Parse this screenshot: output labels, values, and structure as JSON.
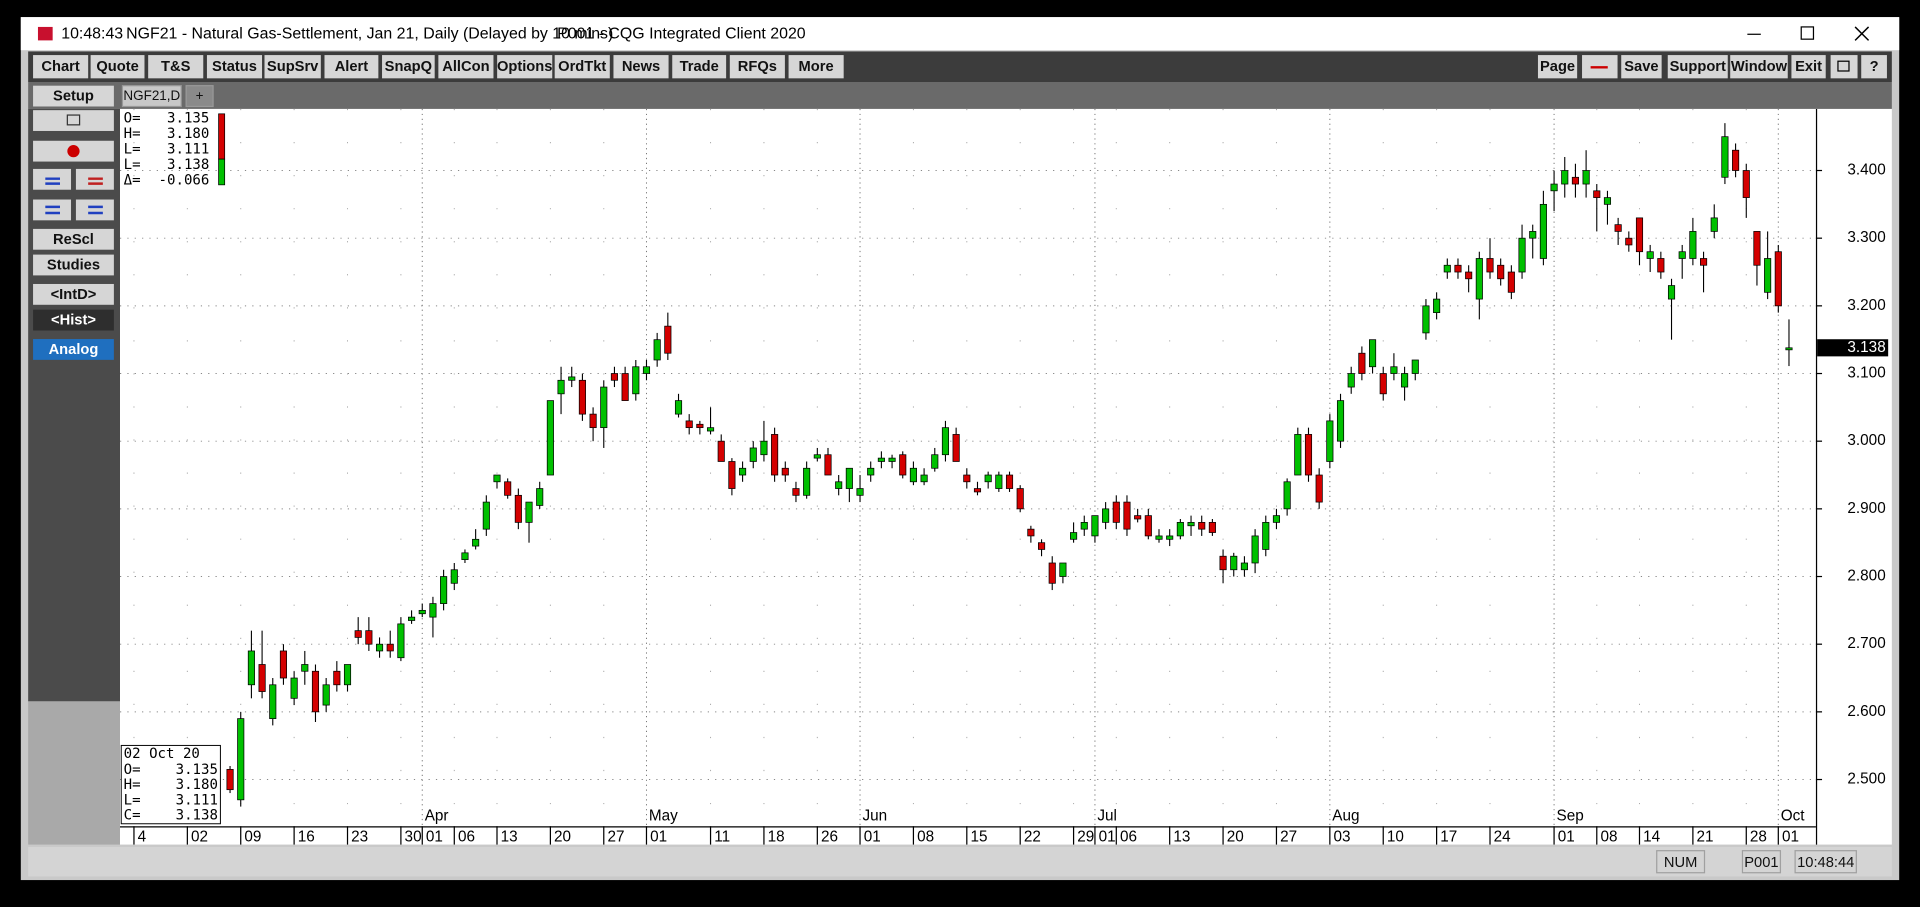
{
  "window": {
    "title_time": "10:48:43",
    "title_symbol": "NGF21 - Natural Gas-Settlement, Jan 21, Daily (Delayed by 10 mins)",
    "title_app": "P001 - CQG Integrated Client 2020",
    "toolbar_left": [
      "Chart",
      "Quote",
      "T&S",
      "Status",
      "SupSrv",
      "Alert",
      "SnapQ",
      "AllCon",
      "Options",
      "OrdTkt",
      "News",
      "Trade",
      "RFQs",
      "More"
    ],
    "toolbar_right": [
      "Page",
      "Save",
      "Support",
      "Window",
      "Exit"
    ],
    "side_buttons": [
      "Setup",
      "ReScl",
      "Studies",
      "<IntD>",
      "<Hist>",
      "Analog"
    ],
    "tabs": [
      "NGF21,D",
      "+"
    ],
    "status": [
      "NUM",
      "P001",
      "10:48:44"
    ]
  },
  "legend_top": [
    {
      "label": "O=",
      "value": "3.135"
    },
    {
      "label": "H=",
      "value": "3.180"
    },
    {
      "label": "L=",
      "value": "3.111"
    },
    {
      "label": "L=",
      "value": "3.138"
    },
    {
      "label": "Δ=",
      "value": "-0.066"
    }
  ],
  "legend_box": {
    "date": "02 Oct 20",
    "rows": [
      {
        "label": "O=",
        "value": "3.135"
      },
      {
        "label": "H=",
        "value": "3.180"
      },
      {
        "label": "L=",
        "value": "3.111"
      },
      {
        "label": "C=",
        "value": "3.138"
      }
    ]
  },
  "last_price_label": "3.138",
  "chart_data": {
    "type": "candlestick",
    "up_color": "#00c000",
    "down_color": "#d40000",
    "ylim": [
      2.431,
      3.491
    ],
    "yticks": [
      {
        "value": 2.5,
        "label": "2.500"
      },
      {
        "value": 2.6,
        "label": "2.600"
      },
      {
        "value": 2.7,
        "label": "2.700"
      },
      {
        "value": 2.8,
        "label": "2.800"
      },
      {
        "value": 2.9,
        "label": "2.900"
      },
      {
        "value": 3.0,
        "label": "3.000"
      },
      {
        "value": 3.1,
        "label": "3.100"
      },
      {
        "value": 3.2,
        "label": "3.200"
      },
      {
        "value": 3.3,
        "label": "3.300"
      },
      {
        "value": 3.4,
        "label": "3.400"
      }
    ],
    "grid": true,
    "categories": [
      "4",
      null,
      null,
      null,
      null,
      "02",
      null,
      null,
      null,
      null,
      "09",
      null,
      null,
      null,
      null,
      "16",
      null,
      null,
      null,
      null,
      "23",
      null,
      null,
      null,
      null,
      "30",
      null,
      "01",
      null,
      null,
      "06",
      null,
      null,
      null,
      "13",
      null,
      null,
      null,
      null,
      "20",
      null,
      null,
      null,
      null,
      "27",
      null,
      null,
      null,
      "01",
      null,
      null,
      null,
      null,
      null,
      "11",
      null,
      null,
      null,
      null,
      "18",
      null,
      null,
      null,
      null,
      "26",
      null,
      null,
      null,
      "01",
      null,
      null,
      null,
      null,
      "08",
      null,
      null,
      null,
      null,
      "15",
      null,
      null,
      null,
      null,
      "22",
      null,
      null,
      null,
      null,
      "29",
      null,
      "01",
      null,
      "06",
      null,
      null,
      null,
      null,
      "13",
      null,
      null,
      null,
      null,
      "20",
      null,
      null,
      null,
      null,
      "27",
      null,
      null,
      null,
      null,
      "03",
      null,
      null,
      null,
      null,
      "10",
      null,
      null,
      null,
      null,
      "17",
      null,
      null,
      null,
      null,
      "24",
      null,
      null,
      null,
      null,
      null,
      "01",
      null,
      null,
      null,
      "08",
      null,
      null,
      null,
      "14",
      null,
      null,
      null,
      null,
      "21",
      null,
      null,
      null,
      null,
      "28",
      null,
      null,
      "01",
      null
    ],
    "months": [
      null,
      null,
      null,
      null,
      null,
      null,
      null,
      null,
      null,
      null,
      null,
      null,
      null,
      null,
      null,
      null,
      null,
      null,
      null,
      null,
      null,
      null,
      null,
      null,
      null,
      null,
      null,
      "Apr",
      null,
      null,
      null,
      null,
      null,
      null,
      null,
      null,
      null,
      null,
      null,
      null,
      null,
      null,
      null,
      null,
      null,
      null,
      null,
      null,
      "May",
      null,
      null,
      null,
      null,
      null,
      null,
      null,
      null,
      null,
      null,
      null,
      null,
      null,
      null,
      null,
      null,
      null,
      null,
      null,
      "Jun",
      null,
      null,
      null,
      null,
      null,
      null,
      null,
      null,
      null,
      null,
      null,
      null,
      null,
      null,
      null,
      null,
      null,
      null,
      null,
      null,
      null,
      "Jul",
      null,
      null,
      null,
      null,
      null,
      null,
      null,
      null,
      null,
      null,
      null,
      null,
      null,
      null,
      null,
      null,
      null,
      null,
      null,
      null,
      null,
      "Aug",
      null,
      null,
      null,
      null,
      null,
      null,
      null,
      null,
      null,
      null,
      null,
      null,
      null,
      null,
      null,
      null,
      null,
      null,
      null,
      null,
      "Sep",
      null,
      null,
      null,
      null,
      null,
      null,
      null,
      null,
      null,
      null,
      null,
      null,
      null,
      null,
      null,
      null,
      null,
      null,
      null,
      null,
      "Oct",
      null
    ],
    "open": [
      null,
      null,
      null,
      null,
      null,
      null,
      null,
      null,
      null,
      2.515,
      2.47,
      2.64,
      2.67,
      2.59,
      2.69,
      2.62,
      2.66,
      2.66,
      2.61,
      2.66,
      2.64,
      2.72,
      2.72,
      2.69,
      2.7,
      2.68,
      2.735,
      2.745,
      2.74,
      2.76,
      2.79,
      2.825,
      2.845,
      2.87,
      2.94,
      2.94,
      2.92,
      2.88,
      2.905,
      2.95,
      3.07,
      3.09,
      3.09,
      3.04,
      3.02,
      3.1,
      3.1,
      3.07,
      3.1,
      3.12,
      3.17,
      3.04,
      3.03,
      3.025,
      3.015,
      3.0,
      2.97,
      2.95,
      2.97,
      2.98,
      3.01,
      2.96,
      2.93,
      2.92,
      2.975,
      2.98,
      2.93,
      2.93,
      2.92,
      2.95,
      2.97,
      2.97,
      2.98,
      2.94,
      2.94,
      2.96,
      2.98,
      3.01,
      2.95,
      2.93,
      2.94,
      2.93,
      2.95,
      2.93,
      2.87,
      2.85,
      2.82,
      2.8,
      2.855,
      2.87,
      2.86,
      2.88,
      2.91,
      2.91,
      2.89,
      2.89,
      2.855,
      2.855,
      2.86,
      2.875,
      2.88,
      2.88,
      2.83,
      2.81,
      2.81,
      2.82,
      2.84,
      2.88,
      2.9,
      2.95,
      3.01,
      2.95,
      2.97,
      3.0,
      3.08,
      3.13,
      3.11,
      3.1,
      3.1,
      3.08,
      3.1,
      3.16,
      3.19,
      3.25,
      3.26,
      3.25,
      3.21,
      3.27,
      3.26,
      3.25,
      3.25,
      3.3,
      3.27,
      3.37,
      3.38,
      3.39,
      3.38,
      3.37,
      3.35,
      3.32,
      3.3,
      3.33,
      3.27,
      3.27,
      3.21,
      3.27,
      3.27,
      3.27,
      3.31,
      3.39,
      3.43,
      3.4,
      3.31,
      3.22,
      3.28,
      3.135
    ],
    "high": [
      null,
      null,
      null,
      null,
      null,
      null,
      null,
      null,
      null,
      2.52,
      2.6,
      2.72,
      2.72,
      2.65,
      2.7,
      2.66,
      2.69,
      2.67,
      2.65,
      2.675,
      2.67,
      2.74,
      2.74,
      2.71,
      2.72,
      2.74,
      2.75,
      2.76,
      2.77,
      2.81,
      2.82,
      2.84,
      2.87,
      2.92,
      2.95,
      2.945,
      2.93,
      2.91,
      2.94,
      3.06,
      3.11,
      3.11,
      3.1,
      3.05,
      3.09,
      3.11,
      3.11,
      3.12,
      3.12,
      3.16,
      3.19,
      3.07,
      3.04,
      3.03,
      3.05,
      3.01,
      2.975,
      2.97,
      3.0,
      3.03,
      3.02,
      2.97,
      2.94,
      2.97,
      2.99,
      2.99,
      2.95,
      2.96,
      2.95,
      2.97,
      2.985,
      2.98,
      2.985,
      2.97,
      2.96,
      2.99,
      3.03,
      3.02,
      2.96,
      2.94,
      2.955,
      2.955,
      2.955,
      2.935,
      2.875,
      2.855,
      2.83,
      2.82,
      2.88,
      2.89,
      2.89,
      2.91,
      2.92,
      2.92,
      2.9,
      2.9,
      2.87,
      2.87,
      2.885,
      2.89,
      2.89,
      2.885,
      2.84,
      2.835,
      2.83,
      2.87,
      2.89,
      2.9,
      2.945,
      3.02,
      3.02,
      2.96,
      3.04,
      3.07,
      3.11,
      3.14,
      3.15,
      3.11,
      3.13,
      3.11,
      3.12,
      3.21,
      3.22,
      3.27,
      3.27,
      3.26,
      3.28,
      3.3,
      3.27,
      3.26,
      3.32,
      3.32,
      3.37,
      3.4,
      3.42,
      3.41,
      3.43,
      3.38,
      3.37,
      3.33,
      3.31,
      3.33,
      3.29,
      3.28,
      3.24,
      3.29,
      3.33,
      3.28,
      3.35,
      3.47,
      3.44,
      3.41,
      3.31,
      3.31,
      3.29,
      3.18
    ],
    "low": [
      null,
      null,
      null,
      null,
      null,
      null,
      null,
      null,
      null,
      2.48,
      2.46,
      2.62,
      2.62,
      2.58,
      2.64,
      2.61,
      2.64,
      2.585,
      2.6,
      2.63,
      2.63,
      2.7,
      2.69,
      2.68,
      2.68,
      2.675,
      2.73,
      2.74,
      2.71,
      2.75,
      2.78,
      2.82,
      2.84,
      2.86,
      2.93,
      2.915,
      2.87,
      2.85,
      2.9,
      2.95,
      3.04,
      3.08,
      3.03,
      3.0,
      2.99,
      3.08,
      3.06,
      3.06,
      3.09,
      3.11,
      3.12,
      3.035,
      3.01,
      3.01,
      3.01,
      2.97,
      2.92,
      2.94,
      2.96,
      2.97,
      2.94,
      2.94,
      2.91,
      2.915,
      2.97,
      2.95,
      2.92,
      2.91,
      2.91,
      2.94,
      2.96,
      2.96,
      2.945,
      2.935,
      2.935,
      2.955,
      2.97,
      2.97,
      2.93,
      2.92,
      2.93,
      2.925,
      2.925,
      2.895,
      2.85,
      2.83,
      2.78,
      2.79,
      2.85,
      2.86,
      2.85,
      2.87,
      2.87,
      2.86,
      2.88,
      2.855,
      2.85,
      2.845,
      2.855,
      2.86,
      2.86,
      2.86,
      2.79,
      2.8,
      2.8,
      2.805,
      2.83,
      2.87,
      2.89,
      2.95,
      2.94,
      2.9,
      2.96,
      2.99,
      3.07,
      3.09,
      3.1,
      3.06,
      3.09,
      3.06,
      3.09,
      3.15,
      3.18,
      3.24,
      3.24,
      3.22,
      3.18,
      3.24,
      3.23,
      3.21,
      3.24,
      3.27,
      3.26,
      3.34,
      3.36,
      3.36,
      3.36,
      3.31,
      3.32,
      3.29,
      3.28,
      3.26,
      3.25,
      3.24,
      3.15,
      3.24,
      3.26,
      3.22,
      3.3,
      3.38,
      3.39,
      3.33,
      3.23,
      3.21,
      3.19,
      3.111
    ],
    "close": [
      null,
      null,
      null,
      null,
      null,
      null,
      null,
      null,
      null,
      2.485,
      2.59,
      2.69,
      2.63,
      2.64,
      2.65,
      2.65,
      2.67,
      2.6,
      2.64,
      2.64,
      2.67,
      2.71,
      2.7,
      2.7,
      2.69,
      2.73,
      2.74,
      2.75,
      2.76,
      2.8,
      2.81,
      2.835,
      2.855,
      2.91,
      2.95,
      2.92,
      2.88,
      2.91,
      2.93,
      3.06,
      3.09,
      3.095,
      3.04,
      3.02,
      3.08,
      3.09,
      3.06,
      3.11,
      3.11,
      3.15,
      3.13,
      3.06,
      3.02,
      3.02,
      3.02,
      2.97,
      2.93,
      2.96,
      2.99,
      3.0,
      2.95,
      2.95,
      2.92,
      2.96,
      2.98,
      2.95,
      2.94,
      2.96,
      2.93,
      2.96,
      2.975,
      2.975,
      2.95,
      2.96,
      2.95,
      2.98,
      3.02,
      2.97,
      2.94,
      2.925,
      2.95,
      2.95,
      2.93,
      2.9,
      2.86,
      2.84,
      2.79,
      2.82,
      2.865,
      2.88,
      2.89,
      2.9,
      2.88,
      2.87,
      2.885,
      2.86,
      2.86,
      2.86,
      2.88,
      2.88,
      2.87,
      2.865,
      2.81,
      2.83,
      2.82,
      2.86,
      2.88,
      2.89,
      2.94,
      3.01,
      2.95,
      2.91,
      3.03,
      3.06,
      3.1,
      3.1,
      3.15,
      3.07,
      3.11,
      3.1,
      3.12,
      3.2,
      3.21,
      3.26,
      3.25,
      3.24,
      3.27,
      3.25,
      3.24,
      3.22,
      3.3,
      3.31,
      3.35,
      3.38,
      3.4,
      3.38,
      3.4,
      3.36,
      3.36,
      3.31,
      3.29,
      3.28,
      3.28,
      3.25,
      3.23,
      3.28,
      3.31,
      3.26,
      3.33,
      3.45,
      3.4,
      3.36,
      3.26,
      3.27,
      3.2,
      3.138
    ]
  }
}
